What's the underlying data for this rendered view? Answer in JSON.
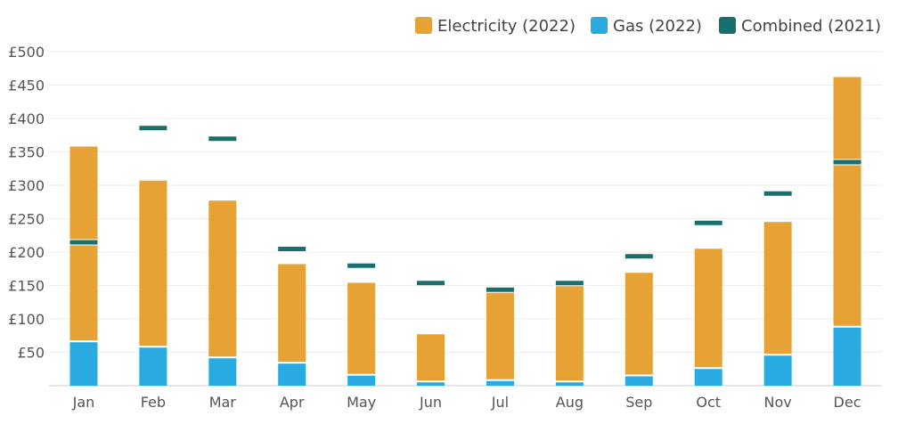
{
  "chart_data": {
    "type": "bar",
    "stacked": true,
    "categories": [
      "Jan",
      "Feb",
      "Mar",
      "Apr",
      "May",
      "Jun",
      "Jul",
      "Aug",
      "Sep",
      "Oct",
      "Nov",
      "Dec"
    ],
    "series": [
      {
        "name": "Gas (2022)",
        "kind": "bar",
        "color": "#29abe2",
        "values": [
          65,
          57,
          41,
          33,
          15,
          5,
          7,
          5,
          14,
          25,
          45,
          87
        ]
      },
      {
        "name": "Electricity (2022)",
        "kind": "bar",
        "color": "#e6a235",
        "values": [
          293,
          250,
          236,
          149,
          139,
          72,
          137,
          151,
          155,
          180,
          200,
          375
        ]
      },
      {
        "name": "Combined (2021)",
        "kind": "marker",
        "color": "#17706e",
        "values": [
          218,
          389,
          373,
          208,
          183,
          157,
          147,
          157,
          197,
          247,
          291,
          338
        ]
      }
    ],
    "legend_order": [
      "Electricity (2022)",
      "Gas (2022)",
      "Combined (2021)"
    ],
    "legend_position": "top-right",
    "yticks": [
      "£50",
      "£100",
      "£150",
      "£200",
      "£250",
      "£300",
      "£350",
      "£400",
      "£450",
      "£500"
    ],
    "ylim": [
      0,
      500
    ],
    "grid": true,
    "title": "",
    "xlabel": "",
    "ylabel": ""
  }
}
